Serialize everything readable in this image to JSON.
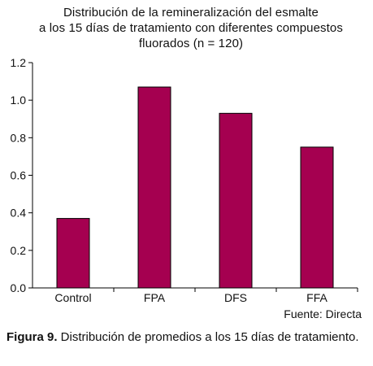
{
  "chart_data": {
    "type": "bar",
    "title_lines": [
      "Distribución de la remineralización del esmalte",
      "a los 15 días de tratamiento con diferentes compuestos",
      "fluorados (n = 120)"
    ],
    "categories": [
      "Control",
      "FPA",
      "DFS",
      "FFA"
    ],
    "values": [
      0.37,
      1.07,
      0.93,
      0.75
    ],
    "ylim": [
      0,
      1.2
    ],
    "yticks": [
      "0.0",
      "0.2",
      "0.4",
      "0.6",
      "0.8",
      "1.0",
      "1.2"
    ],
    "xlabel": "",
    "ylabel": "",
    "grid": false,
    "bar_color": "#A50050"
  },
  "source": "Fuente: Directa",
  "caption": {
    "label": "Figura 9.",
    "text": " Distribución de promedios a los 15 días de tratamiento."
  }
}
